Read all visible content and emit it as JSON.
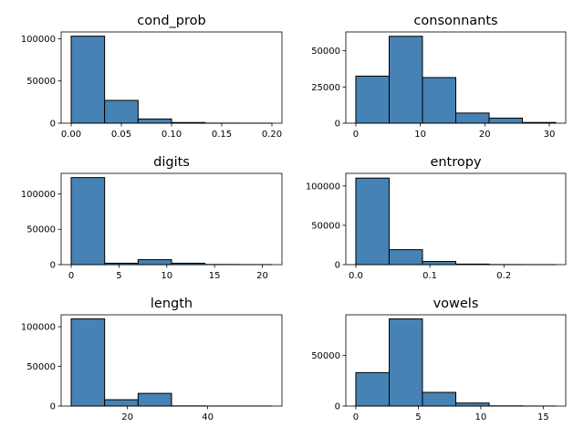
{
  "figure": {
    "bar_color": "#4682b4",
    "edge_color": "#000000"
  },
  "chart_data": [
    {
      "type": "bar",
      "title": "cond_prob",
      "bin_edges": [
        0.0,
        0.0333,
        0.0667,
        0.1,
        0.1333,
        0.1667,
        0.2
      ],
      "values": [
        103000,
        27000,
        5000,
        800,
        100,
        20
      ],
      "xlim": [
        -0.01,
        0.21
      ],
      "ylim": [
        0,
        108000
      ],
      "xticks": [
        0.0,
        0.05,
        0.1,
        0.15,
        0.2
      ],
      "xtick_labels": [
        "0.00",
        "0.05",
        "0.10",
        "0.15",
        "0.20"
      ],
      "yticks": [
        0,
        50000,
        100000
      ],
      "ytick_labels": [
        "0",
        "50000",
        "100000"
      ]
    },
    {
      "type": "bar",
      "title": "consonnants",
      "bin_edges": [
        0,
        5.17,
        10.33,
        15.5,
        20.67,
        25.83,
        31
      ],
      "values": [
        32500,
        60000,
        31500,
        7000,
        3500,
        500
      ],
      "xlim": [
        -1.55,
        32.55
      ],
      "ylim": [
        0,
        63000
      ],
      "xticks": [
        0,
        10,
        20,
        30
      ],
      "xtick_labels": [
        "0",
        "10",
        "20",
        "30"
      ],
      "yticks": [
        0,
        25000,
        50000
      ],
      "ytick_labels": [
        "0",
        "25000",
        "50000"
      ]
    },
    {
      "type": "bar",
      "title": "digits",
      "bin_edges": [
        0,
        3.5,
        7,
        10.5,
        14,
        17.5,
        21
      ],
      "values": [
        123000,
        2000,
        7000,
        2000,
        200,
        50
      ],
      "xlim": [
        -1.05,
        22.05
      ],
      "ylim": [
        0,
        129000
      ],
      "xticks": [
        0,
        5,
        10,
        15,
        20
      ],
      "xtick_labels": [
        "0",
        "5",
        "10",
        "15",
        "20"
      ],
      "yticks": [
        0,
        50000,
        100000
      ],
      "ytick_labels": [
        "0",
        "50000",
        "100000"
      ]
    },
    {
      "type": "bar",
      "title": "entropy",
      "bin_edges": [
        0.0,
        0.045,
        0.09,
        0.135,
        0.18,
        0.225,
        0.27
      ],
      "values": [
        110000,
        19000,
        4000,
        700,
        100,
        20
      ],
      "xlim": [
        -0.0135,
        0.2835
      ],
      "ylim": [
        0,
        116000
      ],
      "xticks": [
        0.0,
        0.1,
        0.2
      ],
      "xtick_labels": [
        "0.0",
        "0.1",
        "0.2"
      ],
      "yticks": [
        0,
        50000,
        100000
      ],
      "ytick_labels": [
        "0",
        "50000",
        "100000"
      ]
    },
    {
      "type": "bar",
      "title": "length",
      "bin_edges": [
        6,
        14.33,
        22.67,
        31,
        39.33,
        47.67,
        56
      ],
      "values": [
        110000,
        8000,
        16000,
        200,
        50,
        20
      ],
      "xlim": [
        3.5,
        58.5
      ],
      "ylim": [
        0,
        115000
      ],
      "xticks": [
        20,
        40
      ],
      "xtick_labels": [
        "20",
        "40"
      ],
      "yticks": [
        0,
        50000,
        100000
      ],
      "ytick_labels": [
        "0",
        "50000",
        "100000"
      ]
    },
    {
      "type": "bar",
      "title": "vowels",
      "bin_edges": [
        0,
        2.67,
        5.33,
        8,
        10.67,
        13.33,
        16
      ],
      "values": [
        33000,
        86000,
        13500,
        3000,
        200,
        20
      ],
      "xlim": [
        -0.8,
        16.8
      ],
      "ylim": [
        0,
        90000
      ],
      "xticks": [
        0,
        5,
        10,
        15
      ],
      "xtick_labels": [
        "0",
        "5",
        "10",
        "15"
      ],
      "yticks": [
        0,
        50000
      ],
      "ytick_labels": [
        "0",
        "50000"
      ]
    }
  ]
}
